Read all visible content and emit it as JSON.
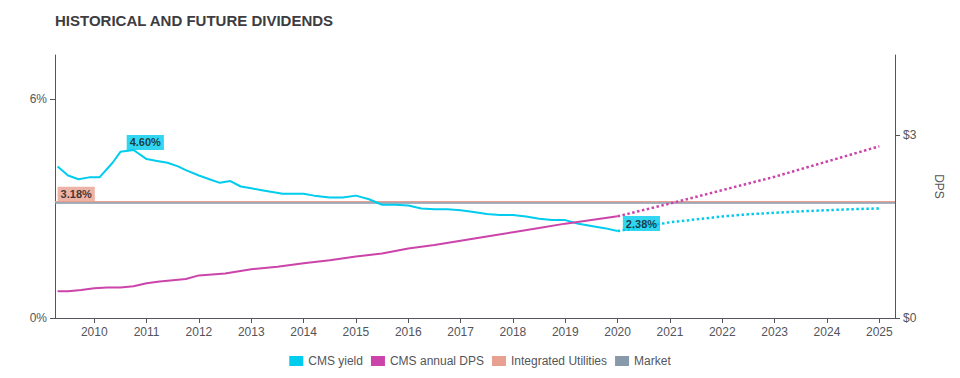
{
  "chart_data": {
    "type": "line",
    "title": "HISTORICAL AND FUTURE DIVIDENDS",
    "series": [
      {
        "name": "CMS yield",
        "color": "#00ccee",
        "line_style": "solid",
        "x": [
          2009.3,
          2009.5,
          2009.7,
          2009.9,
          2010.1,
          2010.35,
          2010.5,
          2010.75,
          2011.0,
          2011.2,
          2011.4,
          2011.6,
          2011.75,
          2012.0,
          2012.2,
          2012.4,
          2012.6,
          2012.8,
          2013.0,
          2013.2,
          2013.4,
          2013.6,
          2013.8,
          2014.0,
          2014.2,
          2014.5,
          2014.75,
          2015.0,
          2015.25,
          2015.5,
          2015.75,
          2016.0,
          2016.25,
          2016.5,
          2016.75,
          2017.0,
          2017.25,
          2017.5,
          2017.75,
          2018.0,
          2018.25,
          2018.5,
          2018.75,
          2019.0,
          2019.25,
          2019.5,
          2019.75,
          2020.0
        ],
        "values": [
          0.0415,
          0.039,
          0.038,
          0.0385,
          0.0385,
          0.0425,
          0.0455,
          0.046,
          0.0435,
          0.043,
          0.0425,
          0.0415,
          0.0405,
          0.039,
          0.038,
          0.037,
          0.0375,
          0.036,
          0.0355,
          0.035,
          0.0345,
          0.034,
          0.034,
          0.034,
          0.0335,
          0.033,
          0.033,
          0.0335,
          0.0325,
          0.031,
          0.031,
          0.0308,
          0.03,
          0.0298,
          0.0298,
          0.0295,
          0.029,
          0.0285,
          0.0282,
          0.0282,
          0.0278,
          0.0272,
          0.0268,
          0.0268,
          0.0258,
          0.0252,
          0.0246,
          0.0238
        ]
      },
      {
        "name": "CMS yield",
        "color": "#00ccee",
        "line_style": "dotted",
        "x": [
          2020.0,
          2020.5,
          2021.0,
          2021.5,
          2022.0,
          2022.5,
          2023.0,
          2023.5,
          2024.0,
          2024.5,
          2025.0
        ],
        "values": [
          0.0238,
          0.025,
          0.0262,
          0.027,
          0.0278,
          0.0284,
          0.0288,
          0.0292,
          0.0295,
          0.0298,
          0.03
        ]
      },
      {
        "name": "CMS annual DPS",
        "color": "#cc44aa",
        "line_style": "solid",
        "axis": "y2",
        "x": [
          2009.3,
          2009.5,
          2009.75,
          2010.0,
          2010.25,
          2010.5,
          2010.75,
          2011.0,
          2011.25,
          2011.75,
          2012.0,
          2012.5,
          2013.0,
          2013.5,
          2014.0,
          2014.5,
          2015.0,
          2015.5,
          2016.0,
          2016.5,
          2017.0,
          2017.5,
          2018.0,
          2018.5,
          2019.0,
          2019.5,
          2020.0
        ],
        "values": [
          0.44,
          0.44,
          0.46,
          0.49,
          0.5,
          0.5,
          0.52,
          0.57,
          0.6,
          0.64,
          0.7,
          0.73,
          0.8,
          0.84,
          0.9,
          0.95,
          1.01,
          1.06,
          1.14,
          1.2,
          1.27,
          1.34,
          1.41,
          1.48,
          1.55,
          1.61,
          1.67
        ]
      },
      {
        "name": "CMS annual DPS",
        "color": "#cc44aa",
        "line_style": "dotted",
        "axis": "y2",
        "x": [
          2020.0,
          2021.0,
          2022.0,
          2023.0,
          2024.0,
          2025.0
        ],
        "values": [
          1.67,
          1.88,
          2.1,
          2.32,
          2.57,
          2.82
        ]
      },
      {
        "name": "Integrated Utilities",
        "type": "hline",
        "color": "#e8a090",
        "line_style": "solid",
        "y": 0.0318
      },
      {
        "name": "Market",
        "type": "hline",
        "color": "#8899aa",
        "line_style": "solid",
        "y": 0.0315
      }
    ],
    "xlim": [
      2009.25,
      2025.3
    ],
    "xticks": [
      2010,
      2011,
      2012,
      2013,
      2014,
      2015,
      2016,
      2017,
      2018,
      2019,
      2020,
      2021,
      2022,
      2023,
      2024,
      2025
    ],
    "ylim": [
      0.0,
      0.072
    ],
    "yticks": [
      {
        "value": 0.0,
        "label": "0%"
      },
      {
        "value": 0.06,
        "label": "6%"
      }
    ],
    "y2lim": [
      0.0,
      4.32
    ],
    "y2ticks": [
      {
        "value": 0.0,
        "label": "$0"
      },
      {
        "value": 3.0,
        "label": "$3"
      }
    ],
    "y2label": "DPS",
    "annotations": [
      {
        "text": "4.60%",
        "x": 2010.62,
        "y": 0.046,
        "color": "#00ccee"
      },
      {
        "text": "3.18%",
        "x": 2009.3,
        "y": 0.0318,
        "color": "#e8a090"
      },
      {
        "text": "2.38%",
        "x": 2020.1,
        "y": 0.0238,
        "color": "#00ccee"
      }
    ],
    "grid": false,
    "legend": "bottom"
  }
}
